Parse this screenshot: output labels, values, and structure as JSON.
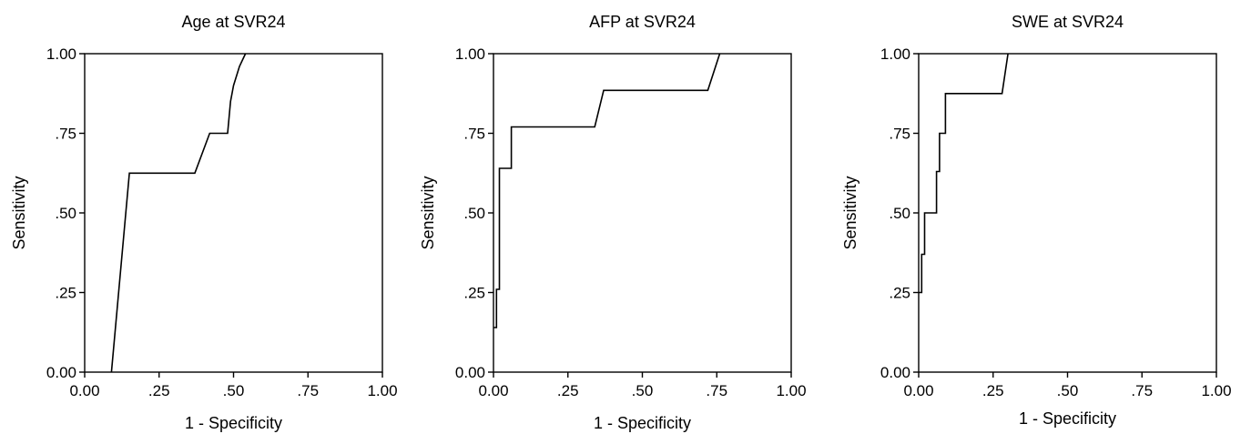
{
  "chart_data": [
    {
      "type": "line",
      "title": "Age at SVR24",
      "xlabel": "1 - Specificity",
      "ylabel": "Sensitivity",
      "xlim": [
        0,
        1
      ],
      "ylim": [
        0,
        1
      ],
      "xticks": [
        "0.00",
        ".25",
        ".50",
        ".75",
        "1.00"
      ],
      "yticks": [
        "0.00",
        ".25",
        ".50",
        ".75",
        "1.00"
      ],
      "grid": false,
      "series": [
        {
          "x": [
            0.09,
            0.15,
            0.37,
            0.42,
            0.48,
            0.49,
            0.5,
            0.52,
            0.54
          ],
          "y": [
            0.0,
            0.625,
            0.625,
            0.75,
            0.75,
            0.85,
            0.9,
            0.96,
            1.0
          ]
        }
      ]
    },
    {
      "type": "line",
      "title": "AFP at SVR24",
      "xlabel": "1 - Specificity",
      "ylabel": "Sensitivity",
      "xlim": [
        0,
        1
      ],
      "ylim": [
        0,
        1
      ],
      "xticks": [
        "0.00",
        ".25",
        ".50",
        ".75",
        "1.00"
      ],
      "yticks": [
        "0.00",
        ".25",
        ".50",
        ".75",
        "1.00"
      ],
      "grid": false,
      "series": [
        {
          "x": [
            0.0,
            0.01,
            0.01,
            0.02,
            0.02,
            0.04,
            0.04,
            0.06,
            0.06,
            0.34,
            0.37,
            0.72,
            0.76
          ],
          "y": [
            0.14,
            0.14,
            0.26,
            0.26,
            0.64,
            0.64,
            0.64,
            0.64,
            0.77,
            0.77,
            0.885,
            0.885,
            1.0
          ]
        }
      ]
    },
    {
      "type": "line",
      "title": "SWE at SVR24",
      "xlabel": "1 - Specificity",
      "ylabel": "Sensitivity",
      "xlim": [
        0,
        1
      ],
      "ylim": [
        0,
        1
      ],
      "xticks": [
        "0.00",
        ".25",
        ".50",
        ".75",
        "1.00"
      ],
      "yticks": [
        "0.00",
        ".25",
        ".50",
        ".75",
        "1.00"
      ],
      "grid": false,
      "series": [
        {
          "x": [
            0.0,
            0.01,
            0.01,
            0.02,
            0.02,
            0.06,
            0.06,
            0.07,
            0.07,
            0.09,
            0.09,
            0.28,
            0.3
          ],
          "y": [
            0.25,
            0.25,
            0.37,
            0.37,
            0.5,
            0.5,
            0.63,
            0.63,
            0.75,
            0.75,
            0.875,
            0.875,
            1.0
          ]
        }
      ]
    }
  ]
}
